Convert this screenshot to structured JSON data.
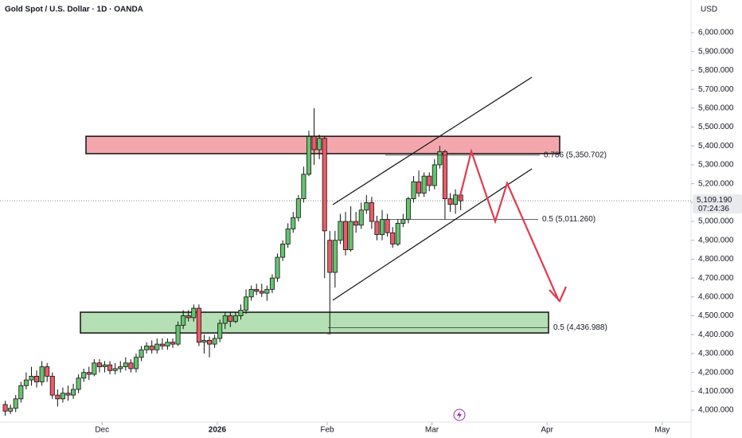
{
  "chart_data": {
    "type": "candlestick",
    "title": "Gold Spot / U.S. Dollar · 1D · OANDA",
    "y_unit": "USD",
    "up_color": "#66c36f",
    "down_color": "#ef5a68",
    "open": [
      4030,
      3995,
      4010,
      4060,
      4130,
      4160,
      4180,
      4150,
      4230,
      4180,
      4080,
      4060,
      4090,
      4080,
      4110,
      4170,
      4200,
      4190,
      4250,
      4230,
      4240,
      4210,
      4220,
      4230,
      4250,
      4220,
      4280,
      4320,
      4340,
      4320,
      4350,
      4340,
      4360,
      4350,
      4450,
      4500,
      4490,
      4540,
      4360,
      4370,
      4350,
      4380,
      4460,
      4500,
      4470,
      4500,
      4530,
      4600,
      4640,
      4630,
      4620,
      4640,
      4700,
      4810,
      4880,
      4960,
      5020,
      5120,
      5250,
      5450,
      5380,
      5440,
      4900,
      4730,
      4900,
      5000,
      4850,
      5000,
      4980,
      5060,
      5100,
      5000,
      4930,
      5010,
      4940,
      4880,
      4990,
      5010,
      5120,
      5210,
      5150,
      5240,
      5190,
      5300,
      5370,
      5120,
      5090,
      5140
    ],
    "high": [
      4050,
      4030,
      4080,
      4150,
      4200,
      4230,
      4210,
      4260,
      4250,
      4200,
      4110,
      4120,
      4130,
      4140,
      4190,
      4220,
      4230,
      4270,
      4270,
      4260,
      4260,
      4250,
      4260,
      4280,
      4270,
      4300,
      4340,
      4360,
      4370,
      4380,
      4380,
      4380,
      4380,
      4470,
      4530,
      4530,
      4560,
      4560,
      4400,
      4390,
      4400,
      4480,
      4520,
      4520,
      4520,
      4560,
      4640,
      4660,
      4670,
      4670,
      4660,
      4720,
      4830,
      4900,
      4990,
      5050,
      5140,
      5290,
      5480,
      5600,
      5460,
      5450,
      4950,
      4950,
      5040,
      5050,
      5080,
      5050,
      5100,
      5140,
      5130,
      5030,
      5060,
      5040,
      4970,
      5010,
      5040,
      5130,
      5240,
      5270,
      5260,
      5260,
      5330,
      5400,
      5380,
      5150,
      5170,
      5160
    ],
    "low": [
      3970,
      3980,
      3990,
      4040,
      4110,
      4130,
      4120,
      4130,
      4150,
      4060,
      4020,
      4040,
      4050,
      4060,
      4090,
      4150,
      4160,
      4180,
      4200,
      4200,
      4190,
      4190,
      4200,
      4210,
      4200,
      4200,
      4260,
      4300,
      4300,
      4300,
      4320,
      4320,
      4330,
      4340,
      4430,
      4470,
      4470,
      4340,
      4300,
      4280,
      4330,
      4360,
      4430,
      4440,
      4460,
      4480,
      4510,
      4580,
      4610,
      4600,
      4580,
      4620,
      4680,
      4790,
      4860,
      4940,
      5000,
      5100,
      5240,
      5300,
      5330,
      4700,
      4400,
      4650,
      4880,
      4820,
      4840,
      4940,
      4960,
      5040,
      4960,
      4900,
      4900,
      4920,
      4860,
      4870,
      4970,
      4990,
      5100,
      5130,
      5130,
      5160,
      5170,
      5280,
      5010,
      5050,
      5040,
      5060
    ],
    "close": [
      3995,
      4010,
      4060,
      4130,
      4160,
      4180,
      4150,
      4230,
      4180,
      4080,
      4060,
      4090,
      4080,
      4110,
      4170,
      4200,
      4190,
      4250,
      4230,
      4240,
      4210,
      4220,
      4230,
      4250,
      4220,
      4280,
      4320,
      4340,
      4320,
      4350,
      4340,
      4360,
      4350,
      4450,
      4500,
      4490,
      4540,
      4360,
      4370,
      4350,
      4380,
      4460,
      4500,
      4470,
      4500,
      4530,
      4600,
      4640,
      4630,
      4620,
      4640,
      4700,
      4810,
      4880,
      4960,
      5020,
      5120,
      5250,
      5450,
      5380,
      5440,
      4950,
      4730,
      4900,
      5000,
      4850,
      5000,
      4980,
      5060,
      5100,
      5000,
      4930,
      5010,
      4940,
      4880,
      4990,
      5010,
      5120,
      5210,
      5150,
      5240,
      5190,
      5300,
      5370,
      5120,
      5090,
      5140,
      5109.19
    ],
    "xlim": [
      -1,
      131
    ],
    "xticks": [
      {
        "value": 18.5,
        "label": "Dec"
      },
      {
        "value": 40.5,
        "label": "2026"
      },
      {
        "value": 61.5,
        "label": "Feb"
      },
      {
        "value": 81.5,
        "label": "Mar"
      },
      {
        "value": 103.5,
        "label": "Apr"
      },
      {
        "value": 125.5,
        "label": "May"
      }
    ],
    "ylim": [
      3937,
      6173
    ],
    "yticks": [
      {
        "value": 4000,
        "label": "4,000.000"
      },
      {
        "value": 4100,
        "label": "4,100.000"
      },
      {
        "value": 4200,
        "label": "4,200.000"
      },
      {
        "value": 4300,
        "label": "4,300.000"
      },
      {
        "value": 4400,
        "label": "4,400.000"
      },
      {
        "value": 4500,
        "label": "4,500.000"
      },
      {
        "value": 4600,
        "label": "4,600.000"
      },
      {
        "value": 4700,
        "label": "4,700.000"
      },
      {
        "value": 4800,
        "label": "4,800.000"
      },
      {
        "value": 4900,
        "label": "4,900.000"
      },
      {
        "value": 5000,
        "label": "5,000.000"
      },
      {
        "value": 5100,
        "label": "5,100.000"
      },
      {
        "value": 5200,
        "label": "5,200.000"
      },
      {
        "value": 5300,
        "label": "5,300.000"
      },
      {
        "value": 5400,
        "label": "5,400.000"
      },
      {
        "value": 5500,
        "label": "5,500.000"
      },
      {
        "value": 5600,
        "label": "5,600.000"
      },
      {
        "value": 5700,
        "label": "5,700.000"
      },
      {
        "value": 5800,
        "label": "5,800.000"
      },
      {
        "value": 5900,
        "label": "5,900.000"
      },
      {
        "value": 6000,
        "label": "6,000.000"
      }
    ],
    "last_price": {
      "value": 5109.19,
      "label": "5,109.190",
      "countdown": "07:24:36"
    },
    "zones": [
      {
        "top": 5451,
        "bottom": 5359,
        "color": "#f4a6ad"
      },
      {
        "top": 4519,
        "bottom": 4409,
        "color": "#b5dfb4"
      }
    ],
    "levels": [
      {
        "value": 5350.702,
        "label": "0.786 (5,350.702)"
      },
      {
        "value": 5011.26,
        "label": "0.5 (5,011.260)"
      },
      {
        "value": 4436.988,
        "label": "0.5 (4,436.988)"
      }
    ]
  }
}
